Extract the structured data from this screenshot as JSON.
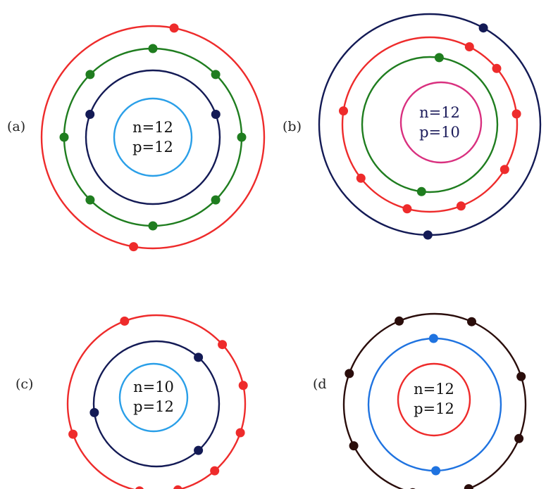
{
  "colors": {
    "red": "#ee2b2b",
    "green": "#1f7d1f",
    "navy": "#131a55",
    "light_blue": "#2a9fe8",
    "magenta": "#d9307f",
    "dark_brown": "#2a0d0b",
    "blue": "#1f73e0"
  },
  "atoms": [
    {
      "id": "a",
      "label": "(a)",
      "nucleus": {
        "line1": "n=12",
        "line2": "p=12",
        "ring_color": "light_blue",
        "text_color": "dark"
      },
      "shells": [
        {
          "color": "navy",
          "electrons": 2
        },
        {
          "color": "green",
          "electrons": 8
        },
        {
          "color": "red",
          "electrons": 2
        }
      ]
    },
    {
      "id": "b",
      "label": "(b)",
      "nucleus": {
        "line1": "n=12",
        "line2": "p=10",
        "ring_color": "magenta",
        "text_color": "navy"
      },
      "shells": [
        {
          "color": "green",
          "electrons": 2
        },
        {
          "color": "red",
          "electrons": 8
        },
        {
          "color": "navy",
          "electrons": 2
        }
      ]
    },
    {
      "id": "c",
      "label": "(c)",
      "nucleus": {
        "line1": "n=10",
        "line2": "p=12",
        "ring_color": "light_blue",
        "text_color": "dark"
      },
      "shells": [
        {
          "color": "navy",
          "electrons": 3
        },
        {
          "color": "red",
          "electrons": 8
        }
      ]
    },
    {
      "id": "d",
      "label": "(d",
      "nucleus": {
        "line1": "n=12",
        "line2": "p=12",
        "ring_color": "red",
        "text_color": "dark"
      },
      "shells": [
        {
          "color": "blue",
          "electrons": 2
        },
        {
          "color": "dark_brown",
          "electrons": 8
        }
      ]
    }
  ]
}
